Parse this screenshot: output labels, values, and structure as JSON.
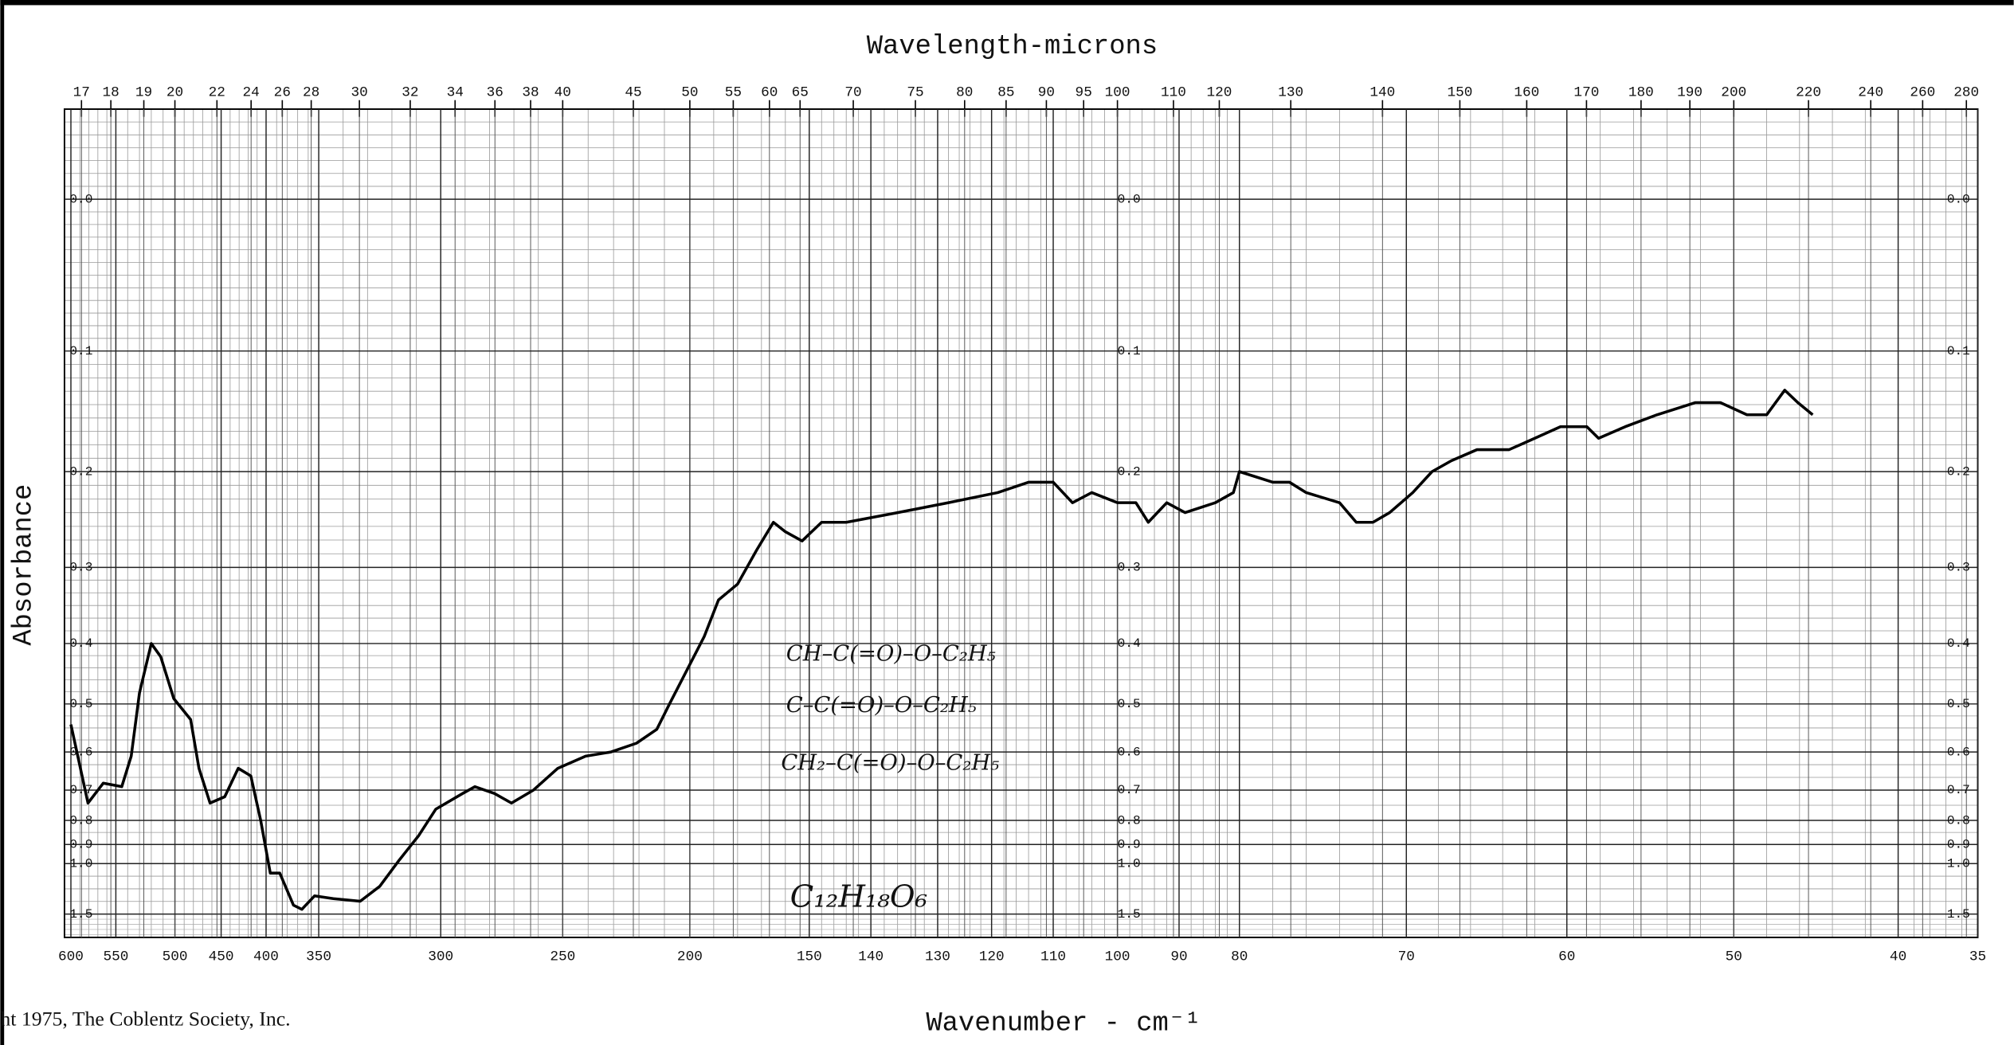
{
  "chart_data": {
    "type": "line",
    "title": "Wavelength-microns",
    "x_label": "Wavenumber - cm⁻¹",
    "y_label": "Absorbance",
    "footer": "ht 1975, The Coblentz Society, Inc.",
    "annotations": [
      "CH–C(=O)–O–C₂H₅",
      "C–C(=O)–O–C₂H₅",
      "CH₂–C(=O)–O–C₂H₅",
      "C₁₂H₁₈O₆"
    ],
    "color": "#000000",
    "grid": true,
    "yscale": "absorbance",
    "xlim": [
      600,
      35
    ],
    "xticks": [
      600,
      550,
      500,
      450,
      400,
      350,
      300,
      250,
      200,
      150,
      140,
      130,
      120,
      110,
      100,
      90,
      80,
      70,
      60,
      50,
      40,
      35
    ],
    "top_ticks": [
      17,
      18,
      19,
      20,
      22,
      24,
      26,
      28,
      30,
      32,
      34,
      36,
      38,
      40,
      45,
      50,
      55,
      60,
      65,
      70,
      75,
      80,
      85,
      90,
      95,
      100,
      110,
      120,
      130,
      140,
      150,
      160,
      170,
      180,
      190,
      200,
      220,
      240,
      260,
      280
    ],
    "ylim": [
      1.5,
      -0.05
    ],
    "yticks": [
      {
        "value": 0,
        "label": "0.0"
      },
      0.1,
      0.2,
      0.3,
      0.4,
      0.5,
      0.6,
      0.7,
      0.8,
      0.9,
      {
        "value": 1,
        "label": "1.0"
      },
      1.5
    ],
    "x": [
      600,
      581,
      564,
      545,
      537,
      530,
      520,
      512,
      501,
      483,
      474,
      462,
      446,
      431,
      417,
      406,
      396,
      387,
      374,
      366,
      354,
      344,
      333,
      325,
      317,
      309,
      302,
      291,
      286,
      278,
      271,
      262,
      252,
      241,
      231,
      221,
      213,
      208,
      201,
      194,
      188,
      180,
      172,
      165,
      160,
      153,
      148,
      144,
      136,
      128,
      119,
      114,
      110,
      107,
      104,
      100,
      97,
      95,
      92,
      89,
      84,
      81,
      80,
      78,
      77,
      76,
      74,
      73,
      72,
      71,
      69.6,
      68.4,
      67.2,
      65.6,
      63.6,
      62,
      60.4,
      58.8,
      58.1,
      56.5,
      54.6,
      52.3,
      50.8,
      49.2,
      48,
      46.9,
      46.1,
      45.2
    ],
    "values": [
      0.54,
      0.74,
      0.68,
      0.69,
      0.61,
      0.48,
      0.4,
      0.42,
      0.49,
      0.53,
      0.64,
      0.74,
      0.72,
      0.64,
      0.66,
      0.8,
      1.06,
      1.06,
      1.36,
      1.42,
      1.25,
      1.28,
      1.31,
      1.16,
      0.98,
      0.86,
      0.76,
      0.71,
      0.69,
      0.71,
      0.74,
      0.7,
      0.64,
      0.61,
      0.6,
      0.58,
      0.55,
      0.5,
      0.44,
      0.39,
      0.34,
      0.32,
      0.28,
      0.25,
      0.26,
      0.27,
      0.25,
      0.25,
      0.24,
      0.23,
      0.22,
      0.21,
      0.21,
      0.23,
      0.22,
      0.23,
      0.23,
      0.25,
      0.23,
      0.24,
      0.23,
      0.22,
      0.2,
      0.21,
      0.21,
      0.22,
      0.23,
      0.25,
      0.25,
      0.24,
      0.22,
      0.2,
      0.19,
      0.18,
      0.18,
      0.17,
      0.16,
      0.16,
      0.17,
      0.16,
      0.15,
      0.14,
      0.14,
      0.15,
      0.15,
      0.13,
      0.14,
      0.15
    ]
  }
}
